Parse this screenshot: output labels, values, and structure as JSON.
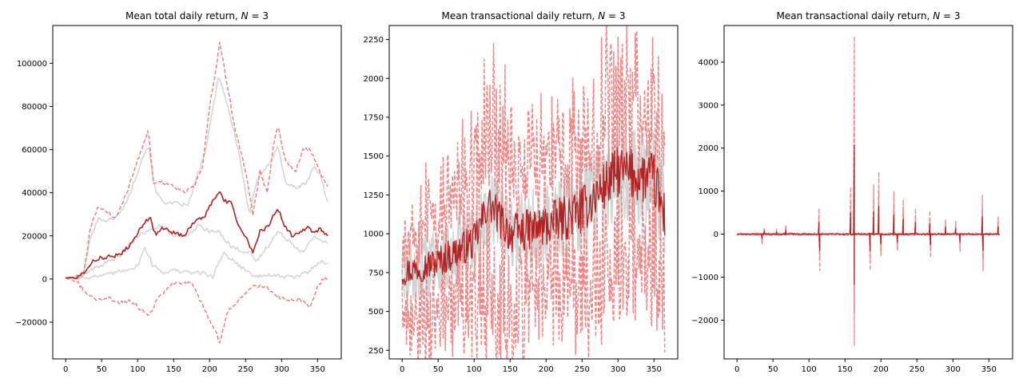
{
  "figure": {
    "background": "#ffffff",
    "colors": {
      "mean": "#b22222",
      "band": "#f08080",
      "samples": "#d3d3d3"
    }
  },
  "chart_data": [
    {
      "type": "line",
      "title": "Mean total daily return, N = 3",
      "title_prefix": "Mean total daily return, ",
      "title_var": "N",
      "title_suffix": " = 3",
      "xlim": [
        -18,
        383
      ],
      "ylim": [
        -37000,
        117500
      ],
      "xticks": [
        0,
        50,
        100,
        150,
        200,
        250,
        300,
        350
      ],
      "yticks": [
        -20000,
        0,
        20000,
        40000,
        60000,
        80000,
        100000
      ],
      "xlabel": "",
      "ylabel": "",
      "grid": false,
      "series": [
        {
          "role": "sample",
          "style": "solid",
          "points": [
            [
              0,
              500
            ],
            [
              15,
              600
            ],
            [
              25,
              2000
            ],
            [
              35,
              20000
            ],
            [
              45,
              28000
            ],
            [
              60,
              27000
            ],
            [
              75,
              30000
            ],
            [
              90,
              40000
            ],
            [
              105,
              55000
            ],
            [
              115,
              62000
            ],
            [
              125,
              40000
            ],
            [
              140,
              35000
            ],
            [
              155,
              35000
            ],
            [
              170,
              34000
            ],
            [
              185,
              50000
            ],
            [
              195,
              60000
            ],
            [
              205,
              80000
            ],
            [
              213,
              95000
            ],
            [
              225,
              80000
            ],
            [
              240,
              60000
            ],
            [
              255,
              30000
            ],
            [
              265,
              45000
            ],
            [
              280,
              52000
            ],
            [
              295,
              62000
            ],
            [
              305,
              45000
            ],
            [
              320,
              42000
            ],
            [
              335,
              45000
            ],
            [
              345,
              52000
            ],
            [
              355,
              48000
            ],
            [
              360,
              40000
            ],
            [
              365,
              35000
            ]
          ]
        },
        {
          "role": "sample",
          "style": "solid",
          "points": [
            [
              0,
              500
            ],
            [
              20,
              1000
            ],
            [
              40,
              5000
            ],
            [
              60,
              8000
            ],
            [
              80,
              12000
            ],
            [
              100,
              20000
            ],
            [
              115,
              22000
            ],
            [
              130,
              25000
            ],
            [
              150,
              20000
            ],
            [
              170,
              20000
            ],
            [
              185,
              25000
            ],
            [
              200,
              22000
            ],
            [
              213,
              22000
            ],
            [
              230,
              15000
            ],
            [
              255,
              12000
            ],
            [
              265,
              8000
            ],
            [
              280,
              15000
            ],
            [
              295,
              22000
            ],
            [
              310,
              18000
            ],
            [
              330,
              12000
            ],
            [
              345,
              20000
            ],
            [
              355,
              18000
            ],
            [
              365,
              16000
            ]
          ]
        },
        {
          "role": "sample",
          "style": "solid",
          "points": [
            [
              0,
              300
            ],
            [
              30,
              800
            ],
            [
              60,
              2000
            ],
            [
              80,
              4000
            ],
            [
              100,
              6000
            ],
            [
              110,
              15000
            ],
            [
              120,
              7000
            ],
            [
              135,
              3000
            ],
            [
              150,
              4000
            ],
            [
              170,
              3000
            ],
            [
              190,
              3000
            ],
            [
              205,
              1000
            ],
            [
              213,
              8000
            ],
            [
              220,
              12000
            ],
            [
              235,
              8000
            ],
            [
              250,
              4000
            ],
            [
              265,
              1000
            ],
            [
              285,
              2000
            ],
            [
              300,
              1000
            ],
            [
              320,
              1000
            ],
            [
              335,
              3000
            ],
            [
              345,
              6000
            ],
            [
              355,
              8000
            ],
            [
              365,
              7000
            ]
          ]
        },
        {
          "role": "band",
          "style": "dashed",
          "points": [
            [
              0,
              600
            ],
            [
              15,
              1000
            ],
            [
              25,
              2000
            ],
            [
              35,
              25000
            ],
            [
              45,
              33000
            ],
            [
              55,
              32000
            ],
            [
              70,
              28000
            ],
            [
              85,
              40000
            ],
            [
              95,
              50000
            ],
            [
              105,
              60000
            ],
            [
              115,
              69000
            ],
            [
              122,
              45000
            ],
            [
              135,
              45000
            ],
            [
              150,
              43000
            ],
            [
              165,
              40000
            ],
            [
              180,
              44000
            ],
            [
              190,
              52000
            ],
            [
              200,
              80000
            ],
            [
              210,
              100000
            ],
            [
              214,
              110000
            ],
            [
              222,
              95000
            ],
            [
              235,
              70000
            ],
            [
              250,
              50000
            ],
            [
              260,
              30000
            ],
            [
              270,
              50000
            ],
            [
              280,
              40000
            ],
            [
              290,
              65000
            ],
            [
              295,
              72000
            ],
            [
              305,
              55000
            ],
            [
              320,
              50000
            ],
            [
              330,
              60000
            ],
            [
              340,
              60000
            ],
            [
              350,
              52000
            ],
            [
              360,
              45000
            ],
            [
              365,
              42000
            ]
          ]
        },
        {
          "role": "band",
          "style": "dashed",
          "points": [
            [
              0,
              400
            ],
            [
              15,
              -1000
            ],
            [
              30,
              -7000
            ],
            [
              45,
              -10000
            ],
            [
              60,
              -9000
            ],
            [
              75,
              -11000
            ],
            [
              90,
              -10000
            ],
            [
              105,
              -14000
            ],
            [
              115,
              -17000
            ],
            [
              130,
              -8000
            ],
            [
              145,
              -3000
            ],
            [
              160,
              -2000
            ],
            [
              175,
              -2000
            ],
            [
              190,
              -12000
            ],
            [
              205,
              -22000
            ],
            [
              214,
              -29000
            ],
            [
              225,
              -15000
            ],
            [
              240,
              -10000
            ],
            [
              260,
              -3000
            ],
            [
              280,
              -4000
            ],
            [
              295,
              -8000
            ],
            [
              310,
              -10000
            ],
            [
              325,
              -9000
            ],
            [
              340,
              -13000
            ],
            [
              350,
              -4000
            ],
            [
              357,
              0
            ],
            [
              365,
              0
            ]
          ]
        },
        {
          "role": "mean",
          "style": "solid",
          "points": [
            [
              0,
              500
            ],
            [
              15,
              800
            ],
            [
              25,
              3000
            ],
            [
              35,
              7500
            ],
            [
              45,
              9500
            ],
            [
              60,
              10500
            ],
            [
              75,
              11000
            ],
            [
              90,
              16000
            ],
            [
              100,
              21000
            ],
            [
              110,
              26000
            ],
            [
              117,
              29000
            ],
            [
              125,
              20000
            ],
            [
              135,
              24000
            ],
            [
              145,
              22000
            ],
            [
              155,
              21000
            ],
            [
              165,
              20000
            ],
            [
              175,
              25000
            ],
            [
              185,
              28000
            ],
            [
              195,
              30000
            ],
            [
              205,
              37000
            ],
            [
              213,
              40000
            ],
            [
              222,
              36000
            ],
            [
              230,
              36000
            ],
            [
              240,
              25000
            ],
            [
              250,
              20000
            ],
            [
              260,
              12000
            ],
            [
              270,
              22000
            ],
            [
              280,
              24000
            ],
            [
              290,
              30000
            ],
            [
              295,
              33000
            ],
            [
              305,
              24000
            ],
            [
              315,
              20000
            ],
            [
              325,
              22000
            ],
            [
              335,
              24000
            ],
            [
              345,
              22000
            ],
            [
              355,
              23000
            ],
            [
              365,
              19000
            ]
          ]
        }
      ]
    },
    {
      "type": "line",
      "title": "Mean transactional daily return, N = 3",
      "title_prefix": "Mean transactional daily return, ",
      "title_var": "N",
      "title_suffix": " = 3",
      "xlim": [
        -18,
        383
      ],
      "ylim": [
        195,
        2340
      ],
      "xticks": [
        0,
        50,
        100,
        150,
        200,
        250,
        300,
        350
      ],
      "yticks": [
        250,
        500,
        750,
        1000,
        1250,
        1500,
        1750,
        2000,
        2250
      ],
      "xlabel": "",
      "ylabel": "",
      "grid": false,
      "noise": {
        "points_per_day": 1,
        "mean_trend": [
          [
            0,
            750
          ],
          [
            50,
            820
          ],
          [
            100,
            950
          ],
          [
            120,
            1200
          ],
          [
            150,
            1000
          ],
          [
            200,
            1050
          ],
          [
            250,
            1150
          ],
          [
            300,
            1400
          ],
          [
            350,
            1350
          ],
          [
            365,
            1100
          ]
        ],
        "band_amp": [
          [
            0,
            350
          ],
          [
            100,
            450
          ],
          [
            118,
            650
          ],
          [
            200,
            450
          ],
          [
            300,
            650
          ],
          [
            365,
            500
          ]
        ],
        "sample_amp": [
          [
            0,
            200
          ],
          [
            365,
            320
          ]
        ],
        "mean_amp": [
          [
            0,
            90
          ],
          [
            365,
            180
          ]
        ]
      }
    },
    {
      "type": "line",
      "title": "Mean transactional daily return, N = 3",
      "title_prefix": "Mean transactional daily return, ",
      "title_var": "N",
      "title_suffix": " = 3",
      "xlim": [
        -18,
        383
      ],
      "ylim": [
        -2900,
        4850
      ],
      "xticks": [
        0,
        50,
        100,
        150,
        200,
        250,
        300,
        350
      ],
      "yticks": [
        -2000,
        -1000,
        0,
        1000,
        2000,
        3000,
        4000
      ],
      "xlabel": "",
      "ylabel": "",
      "grid": false,
      "spikes": [
        [
          35,
          -250
        ],
        [
          38,
          150
        ],
        [
          55,
          120
        ],
        [
          68,
          220
        ],
        [
          114,
          600
        ],
        [
          115,
          -850
        ],
        [
          158,
          1100
        ],
        [
          163,
          4600
        ],
        [
          163,
          -2600
        ],
        [
          185,
          -850
        ],
        [
          190,
          1150
        ],
        [
          197,
          1450
        ],
        [
          200,
          -500
        ],
        [
          218,
          1000
        ],
        [
          223,
          -400
        ],
        [
          231,
          800
        ],
        [
          248,
          600
        ],
        [
          268,
          550
        ],
        [
          269,
          -550
        ],
        [
          290,
          350
        ],
        [
          304,
          300
        ],
        [
          310,
          -400
        ],
        [
          341,
          900
        ],
        [
          342,
          -850
        ],
        [
          363,
          400
        ]
      ]
    }
  ]
}
